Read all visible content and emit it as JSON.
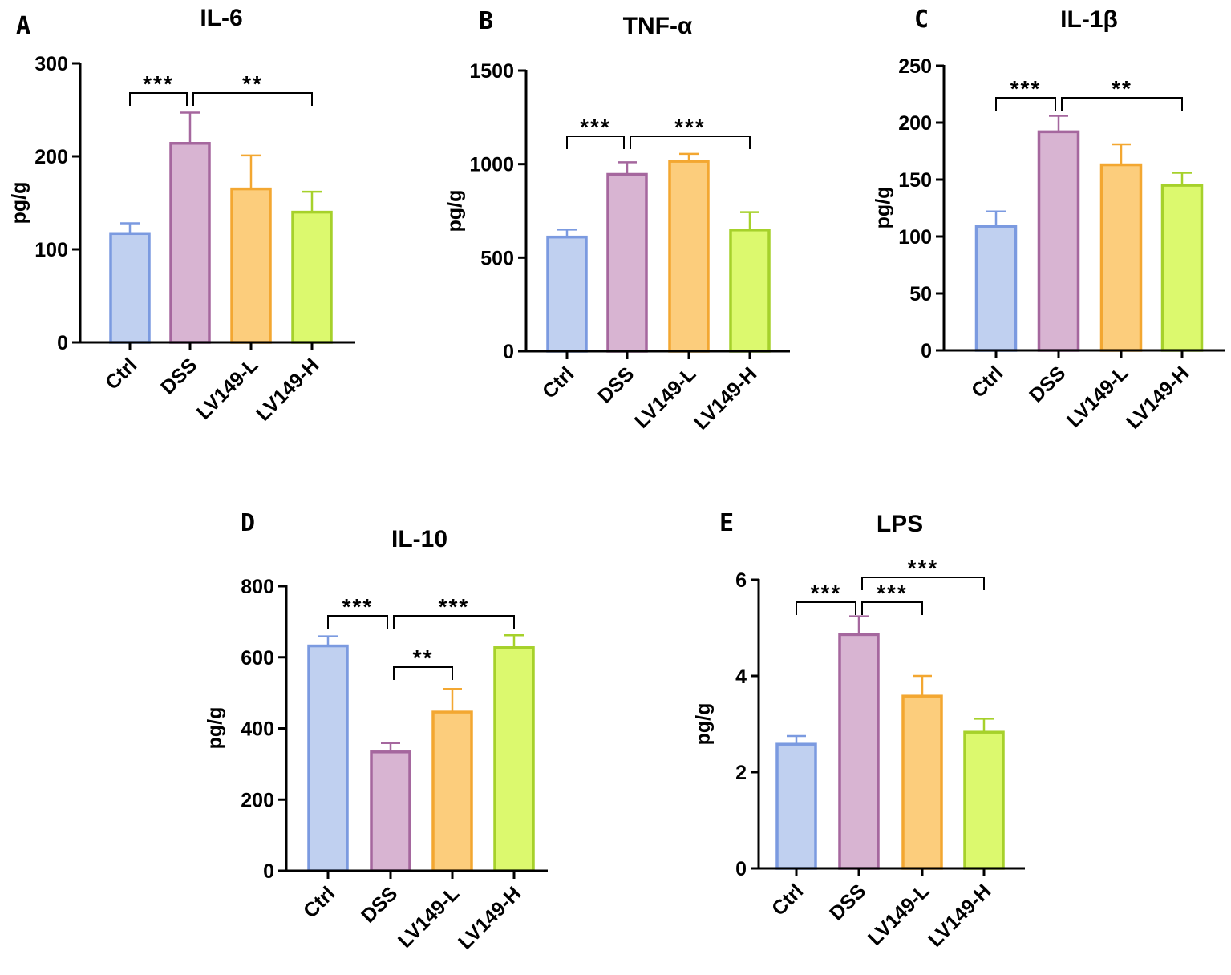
{
  "figure": {
    "group_colors": {
      "Ctrl": {
        "fill": "#c0d0f0",
        "stroke": "#7b9ae0"
      },
      "DSS": {
        "fill": "#d8b4d2",
        "stroke": "#a5679e"
      },
      "LV149-L": {
        "fill": "#fccd7c",
        "stroke": "#f3a731"
      },
      "LV149-H": {
        "fill": "#dcf96e",
        "stroke": "#a6d12b"
      }
    }
  },
  "chart_data": [
    {
      "panel": "A",
      "type": "bar",
      "title": "IL-6",
      "ylabel": "pg/g",
      "xlabel": "",
      "categories": [
        "Ctrl",
        "DSS",
        "LV149-L",
        "LV149-H"
      ],
      "values": [
        117,
        214,
        165,
        140
      ],
      "error": [
        11,
        33,
        36,
        22
      ],
      "ylim": [
        0,
        300
      ],
      "yticks": [
        0,
        100,
        200,
        300
      ],
      "significance": [
        {
          "from": 0,
          "to": 1,
          "label": "***",
          "level": 116
        },
        {
          "from": 1,
          "to": 3,
          "label": "**",
          "level": 116
        }
      ]
    },
    {
      "panel": "B",
      "type": "bar",
      "title": "TNF-α",
      "ylabel": "pg/g",
      "xlabel": "",
      "categories": [
        "Ctrl",
        "DSS",
        "LV149-L",
        "LV149-H"
      ],
      "values": [
        610,
        945,
        1015,
        648
      ],
      "error": [
        40,
        65,
        40,
        95
      ],
      "ylim": [
        0,
        1500
      ],
      "yticks": [
        0,
        500,
        1000,
        1500
      ],
      "significance": [
        {
          "from": 0,
          "to": 1,
          "label": "***",
          "level": 170
        },
        {
          "from": 1,
          "to": 3,
          "label": "***",
          "level": 170
        }
      ]
    },
    {
      "panel": "C",
      "type": "bar",
      "title": "IL-1β",
      "ylabel": "pg/g",
      "xlabel": "",
      "categories": [
        "Ctrl",
        "DSS",
        "LV149-L",
        "LV149-H"
      ],
      "values": [
        109,
        192,
        163,
        145
      ],
      "error": [
        13,
        14,
        18,
        11
      ],
      "ylim": [
        0,
        250
      ],
      "yticks": [
        0,
        50,
        100,
        150,
        200,
        250
      ],
      "significance": [
        {
          "from": 0,
          "to": 1,
          "label": "***",
          "level": 122
        },
        {
          "from": 1,
          "to": 3,
          "label": "**",
          "level": 122
        }
      ]
    },
    {
      "panel": "D",
      "type": "bar",
      "title": "IL-10",
      "ylabel": "pg/g",
      "xlabel": "",
      "categories": [
        "Ctrl",
        "DSS",
        "LV149-L",
        "LV149-H"
      ],
      "values": [
        632,
        334,
        446,
        627
      ],
      "error": [
        27,
        25,
        65,
        35
      ],
      "ylim": [
        0,
        800
      ],
      "yticks": [
        0,
        200,
        400,
        600,
        800
      ],
      "significance": [
        {
          "from": 0,
          "to": 1,
          "label": "***",
          "level": 768
        },
        {
          "from": 1,
          "to": 3,
          "label": "***",
          "level": 768
        },
        {
          "from": 1,
          "to": 2,
          "label": "**",
          "level": 832
        }
      ]
    },
    {
      "panel": "E",
      "type": "bar",
      "title": "LPS",
      "ylabel": "pg/g",
      "xlabel": "",
      "categories": [
        "Ctrl",
        "DSS",
        "LV149-L",
        "LV149-H"
      ],
      "values": [
        2.58,
        4.86,
        3.58,
        2.83
      ],
      "error": [
        0.17,
        0.38,
        0.42,
        0.28
      ],
      "ylim": [
        0,
        6
      ],
      "yticks": [
        0,
        2,
        4,
        6
      ],
      "significance": [
        {
          "from": 0,
          "to": 1,
          "label": "***",
          "level": 751
        },
        {
          "from": 1,
          "to": 2,
          "label": "***",
          "level": 751
        },
        {
          "from": 1,
          "to": 3,
          "label": "***",
          "level": 720
        }
      ]
    }
  ]
}
